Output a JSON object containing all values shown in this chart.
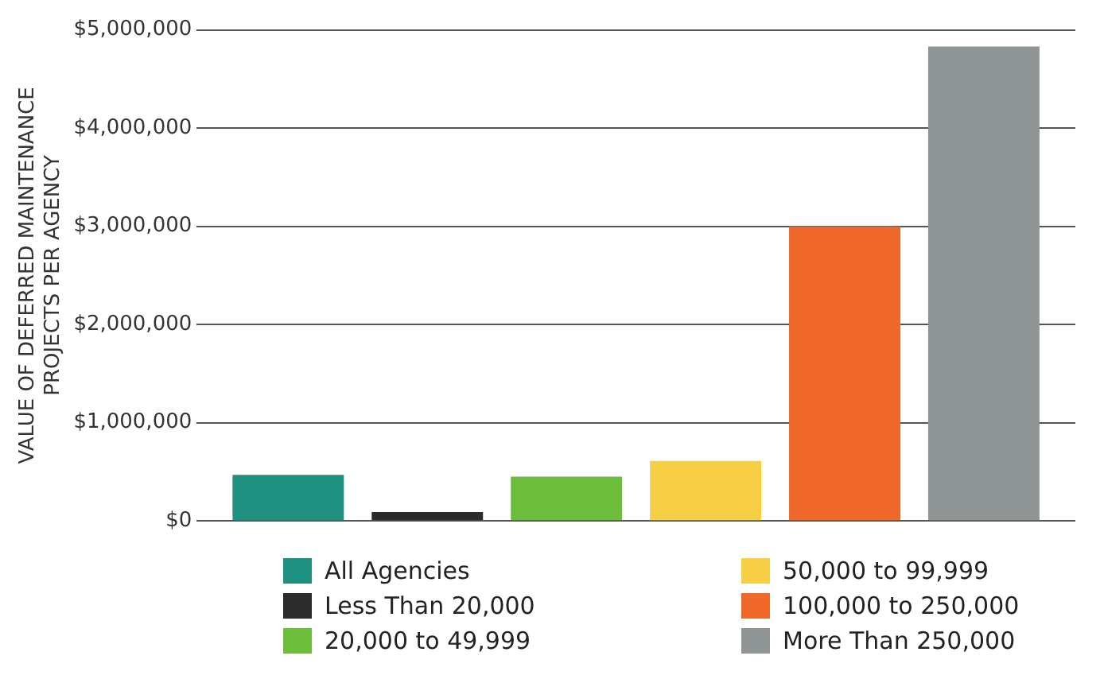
{
  "chart_data": {
    "type": "bar",
    "ylabel": "VALUE OF DEFERRED MAINTENANCE PROJECTS PER AGENCY",
    "categories": [
      null
    ],
    "series": [
      {
        "name": "All Agencies",
        "color": "#1f9181",
        "values": [
          470000
        ]
      },
      {
        "name": "Less Than 20,000",
        "color": "#2b2b2b",
        "values": [
          90000
        ]
      },
      {
        "name": "20,000 to 49,999",
        "color": "#6cbd3c",
        "values": [
          450000
        ]
      },
      {
        "name": "50,000 to 99,999",
        "color": "#f7cf45",
        "values": [
          610000
        ]
      },
      {
        "name": "100,000 to 250,000",
        "color": "#f0672a",
        "values": [
          3000000
        ]
      },
      {
        "name": "More Than 250,000",
        "color": "#8f9594",
        "values": [
          4830000
        ]
      }
    ],
    "ylim": [
      0,
      5000000
    ],
    "yticks": [
      {
        "value": 0,
        "label": "$0"
      },
      {
        "value": 1000000,
        "label": "$1,000,000"
      },
      {
        "value": 2000000,
        "label": "$2,000,000"
      },
      {
        "value": 3000000,
        "label": "$3,000,000"
      },
      {
        "value": 4000000,
        "label": "$4,000,000"
      },
      {
        "value": 5000000,
        "label": "$5,000,000"
      }
    ],
    "grid": "y",
    "legend": "bottom"
  }
}
